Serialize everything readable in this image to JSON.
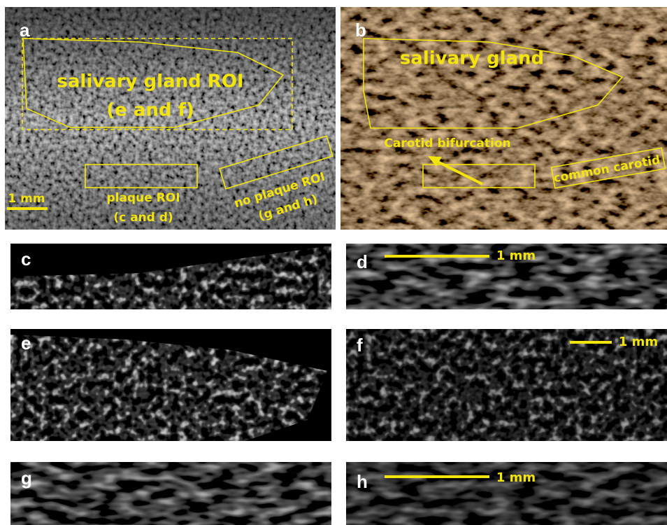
{
  "panels": [
    {
      "label": "a",
      "annotations": [
        "salivary gland ROI",
        "(e and f)",
        "plaque ROI",
        "(c and d)",
        "no plaque ROI",
        "(g and h)"
      ],
      "scale_bar": "1 mm"
    },
    {
      "label": "b",
      "annotations": [
        "salivary gland",
        "Carotid bifurcation",
        "common carotid"
      ]
    },
    {
      "label": "c"
    },
    {
      "label": "d",
      "scale_bar": "1 mm"
    },
    {
      "label": "e"
    },
    {
      "label": "f",
      "scale_bar": "1 mm"
    },
    {
      "label": "g"
    },
    {
      "label": "h",
      "scale_bar": "1 mm"
    }
  ]
}
